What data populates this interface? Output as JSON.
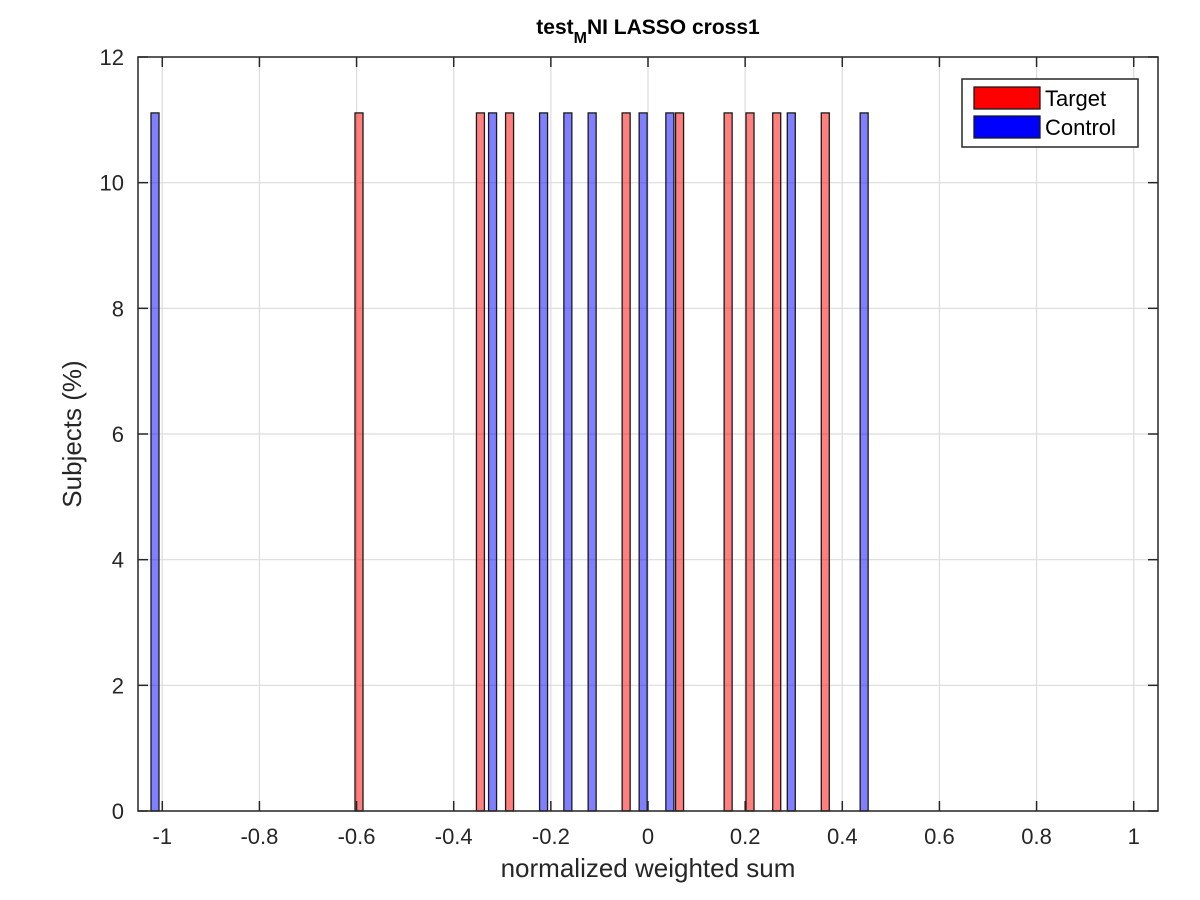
{
  "chart_data": {
    "type": "bar",
    "title": {
      "prefix": "test",
      "subscript": "M",
      "suffix": "NI LASSO cross1"
    },
    "xlabel": "normalized weighted sum",
    "ylabel": "Subjects (%)",
    "xlim": [
      -1.05,
      1.05
    ],
    "ylim": [
      0,
      12
    ],
    "xticks": [
      -1,
      -0.8,
      -0.6,
      -0.4,
      -0.2,
      0,
      0.2,
      0.4,
      0.6,
      0.8,
      1
    ],
    "xtick_labels": [
      "-1",
      "-0.8",
      "-0.6",
      "-0.4",
      "-0.2",
      "0",
      "0.2",
      "0.4",
      "0.6",
      "0.8",
      "1"
    ],
    "yticks": [
      0,
      2,
      4,
      6,
      8,
      10,
      12
    ],
    "ytick_labels": [
      "0",
      "2",
      "4",
      "6",
      "8",
      "10",
      "12"
    ],
    "grid": true,
    "legend_position": "top-right",
    "series": [
      {
        "name": "Target",
        "color": "#ff0000",
        "x": [
          -0.595,
          -0.345,
          -0.285,
          -0.045,
          0.065,
          0.165,
          0.21,
          0.265,
          0.365
        ],
        "values": [
          11.11,
          11.11,
          11.11,
          11.11,
          11.11,
          11.11,
          11.11,
          11.11,
          11.11
        ]
      },
      {
        "name": "Control",
        "color": "#0000ff",
        "x": [
          -1.015,
          -0.32,
          -0.215,
          -0.165,
          -0.115,
          -0.01,
          0.045,
          0.295,
          0.445
        ],
        "values": [
          11.11,
          11.11,
          11.11,
          11.11,
          11.11,
          11.11,
          11.11,
          11.11,
          11.11
        ]
      }
    ]
  }
}
